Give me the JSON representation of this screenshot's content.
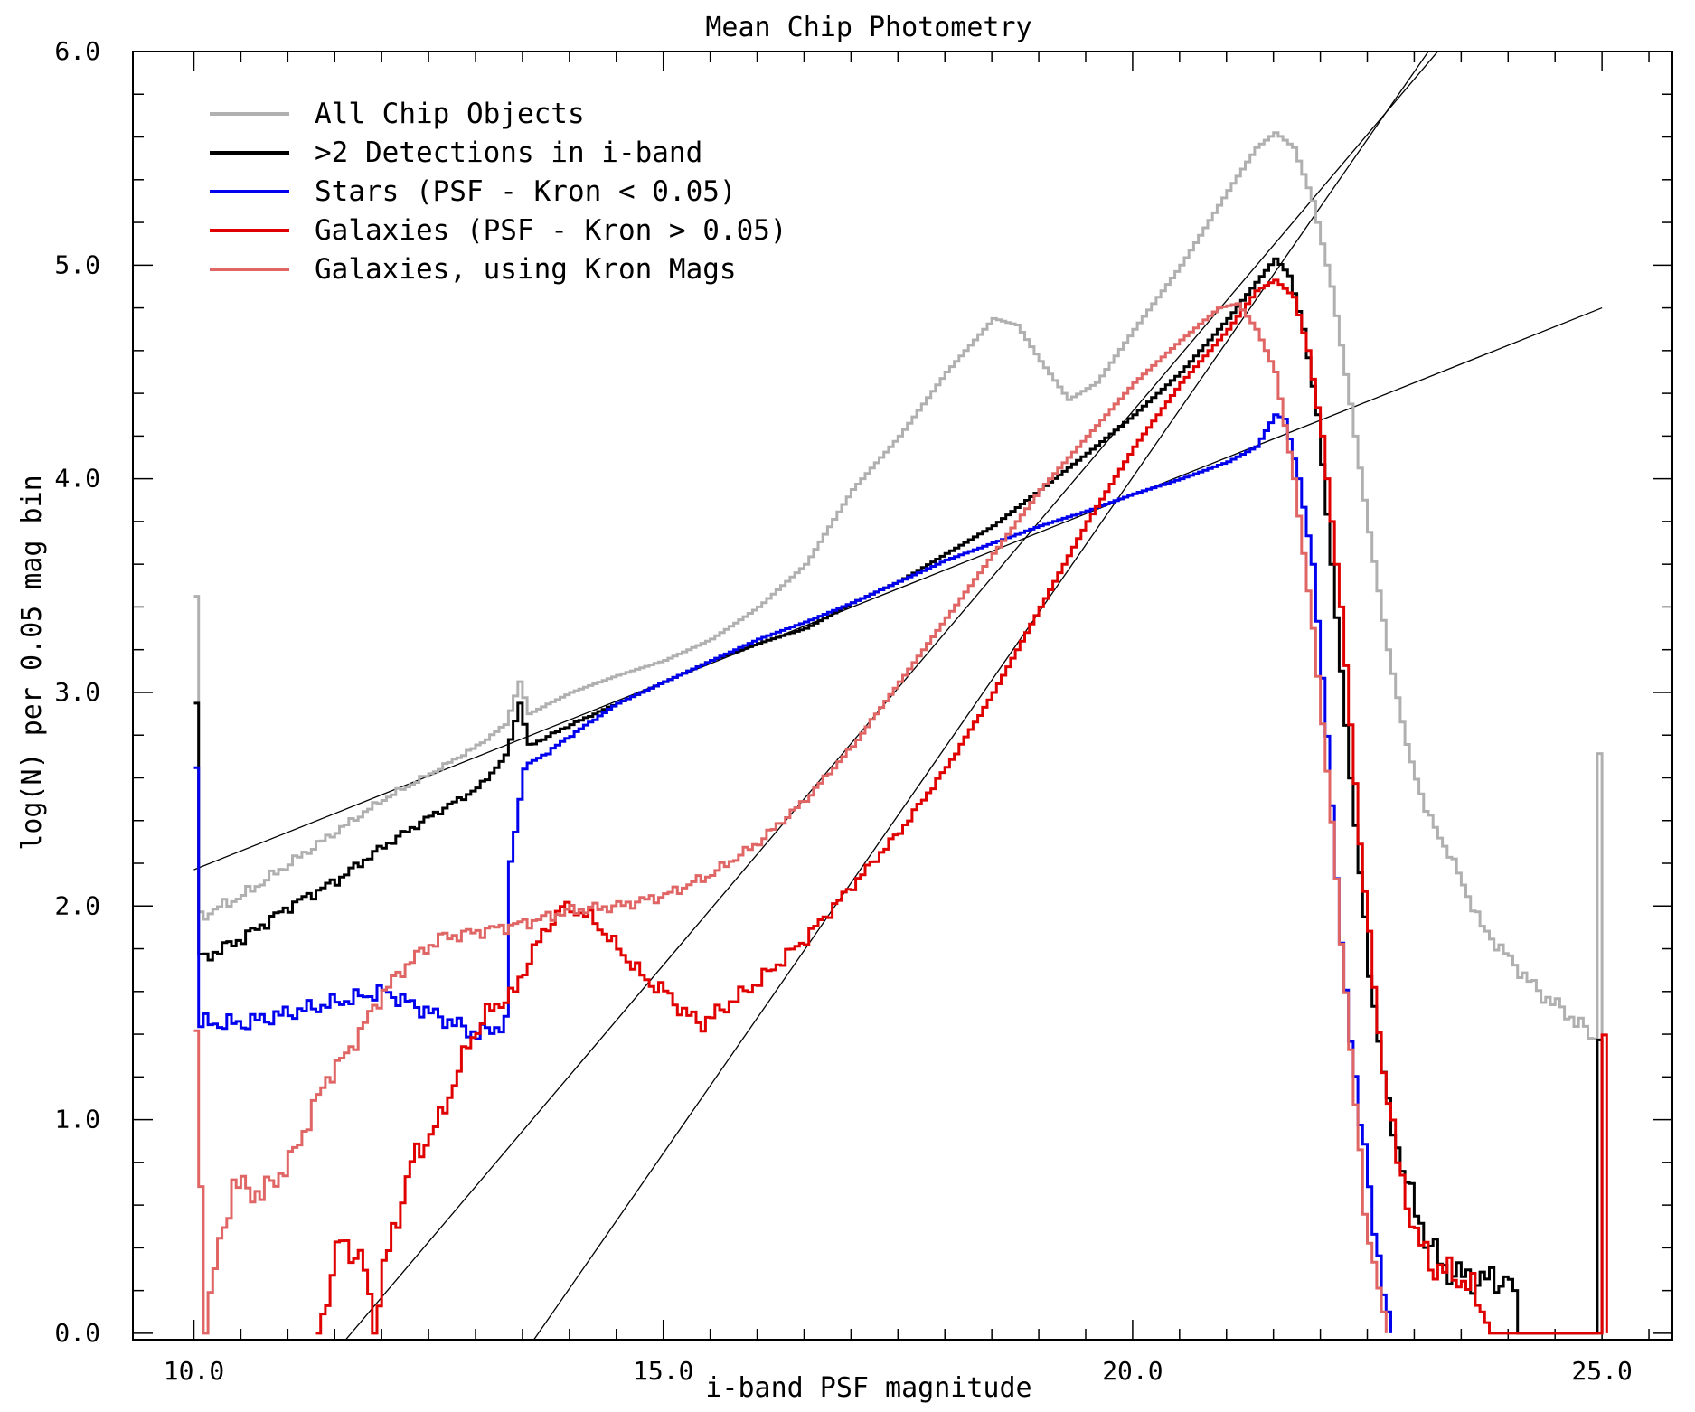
{
  "chart_data": {
    "type": "line",
    "title": "Mean Chip Photometry",
    "xlabel": "i-band PSF magnitude",
    "ylabel": "log(N) per 0.05 mag bin",
    "xlim": [
      9.35,
      25.75
    ],
    "ylim": [
      -0.03,
      6.0
    ],
    "x_ticks": [
      {
        "v": 10,
        "label": "10.0"
      },
      {
        "v": 15,
        "label": "15.0"
      },
      {
        "v": 20,
        "label": "20.0"
      },
      {
        "v": 25,
        "label": "25.0"
      }
    ],
    "y_ticks": [
      {
        "v": 0,
        "label": "0.0"
      },
      {
        "v": 1,
        "label": "1.0"
      },
      {
        "v": 2,
        "label": "2.0"
      },
      {
        "v": 3,
        "label": "3.0"
      },
      {
        "v": 4,
        "label": "4.0"
      },
      {
        "v": 5,
        "label": "5.0"
      },
      {
        "v": 6,
        "label": "6.0"
      }
    ],
    "legend": [
      {
        "label": "All Chip Objects",
        "color": "#b0b0b0"
      },
      {
        "label": ">2 Detections in i-band",
        "color": "#000000"
      },
      {
        "label": "Stars (PSF - Kron < 0.05)",
        "color": "#0000ee"
      },
      {
        "label": "Galaxies (PSF - Kron > 0.05)",
        "color": "#e00000"
      },
      {
        "label": "Galaxies, using Kron Mags",
        "color": "#e06666"
      }
    ],
    "series": [
      {
        "name": "All Chip Objects",
        "color": "#b0b0b0",
        "points": [
          [
            10.0,
            3.45
          ],
          [
            10.05,
            1.95
          ],
          [
            10.5,
            2.05
          ],
          [
            11.0,
            2.2
          ],
          [
            11.5,
            2.35
          ],
          [
            12.0,
            2.5
          ],
          [
            12.5,
            2.62
          ],
          [
            13.0,
            2.75
          ],
          [
            13.3,
            2.85
          ],
          [
            13.45,
            3.05
          ],
          [
            13.55,
            2.9
          ],
          [
            14.0,
            3.0
          ],
          [
            14.5,
            3.08
          ],
          [
            15.0,
            3.15
          ],
          [
            15.5,
            3.25
          ],
          [
            16.0,
            3.4
          ],
          [
            16.5,
            3.6
          ],
          [
            17.0,
            3.95
          ],
          [
            17.5,
            4.2
          ],
          [
            18.0,
            4.5
          ],
          [
            18.5,
            4.75
          ],
          [
            18.75,
            4.72
          ],
          [
            19.0,
            4.55
          ],
          [
            19.3,
            4.37
          ],
          [
            19.6,
            4.45
          ],
          [
            20.0,
            4.7
          ],
          [
            20.5,
            5.0
          ],
          [
            21.0,
            5.35
          ],
          [
            21.3,
            5.55
          ],
          [
            21.5,
            5.62
          ],
          [
            21.7,
            5.55
          ],
          [
            21.9,
            5.3
          ],
          [
            22.1,
            4.9
          ],
          [
            22.3,
            4.35
          ],
          [
            22.5,
            3.75
          ],
          [
            22.7,
            3.2
          ],
          [
            22.9,
            2.75
          ],
          [
            23.1,
            2.45
          ],
          [
            23.4,
            2.2
          ],
          [
            23.7,
            1.9
          ],
          [
            24.0,
            1.75
          ],
          [
            24.3,
            1.6
          ],
          [
            24.6,
            1.5
          ],
          [
            24.9,
            1.38
          ],
          [
            24.95,
            2.72
          ],
          [
            25.0,
            1.4
          ]
        ]
      },
      {
        "name": ">2 Detections in i-band",
        "color": "#000000",
        "points": [
          [
            10.0,
            2.95
          ],
          [
            10.05,
            1.75
          ],
          [
            10.5,
            1.85
          ],
          [
            11.0,
            2.0
          ],
          [
            11.5,
            2.12
          ],
          [
            12.0,
            2.28
          ],
          [
            12.5,
            2.42
          ],
          [
            13.0,
            2.55
          ],
          [
            13.3,
            2.7
          ],
          [
            13.45,
            2.95
          ],
          [
            13.55,
            2.75
          ],
          [
            14.0,
            2.85
          ],
          [
            14.5,
            2.95
          ],
          [
            15.0,
            3.05
          ],
          [
            15.5,
            3.15
          ],
          [
            16.0,
            3.23
          ],
          [
            16.5,
            3.3
          ],
          [
            17.0,
            3.42
          ],
          [
            17.5,
            3.52
          ],
          [
            18.0,
            3.65
          ],
          [
            18.5,
            3.78
          ],
          [
            19.0,
            3.95
          ],
          [
            19.5,
            4.12
          ],
          [
            20.0,
            4.3
          ],
          [
            20.5,
            4.5
          ],
          [
            21.0,
            4.75
          ],
          [
            21.3,
            4.92
          ],
          [
            21.5,
            5.03
          ],
          [
            21.65,
            4.95
          ],
          [
            21.8,
            4.7
          ],
          [
            21.95,
            4.3
          ],
          [
            22.1,
            3.6
          ],
          [
            22.3,
            2.6
          ],
          [
            22.5,
            1.7
          ],
          [
            22.7,
            1.05
          ],
          [
            22.9,
            0.7
          ],
          [
            23.1,
            0.45
          ],
          [
            23.3,
            0.3
          ],
          [
            23.6,
            0.25
          ],
          [
            24.0,
            0.25
          ],
          [
            24.1,
            0.0
          ],
          [
            24.9,
            0.0
          ],
          [
            24.95,
            1.4
          ],
          [
            25.0,
            0.0
          ]
        ]
      },
      {
        "name": "Stars (PSF - Kron < 0.05)",
        "color": "#0000ee",
        "points": [
          [
            10.0,
            2.65
          ],
          [
            10.05,
            1.45
          ],
          [
            10.5,
            1.45
          ],
          [
            11.0,
            1.5
          ],
          [
            11.5,
            1.55
          ],
          [
            12.0,
            1.6
          ],
          [
            12.5,
            1.5
          ],
          [
            13.0,
            1.4
          ],
          [
            13.3,
            1.45
          ],
          [
            13.35,
            2.2
          ],
          [
            13.5,
            2.65
          ],
          [
            13.75,
            2.72
          ],
          [
            14.0,
            2.8
          ],
          [
            14.5,
            2.95
          ],
          [
            15.0,
            3.05
          ],
          [
            15.5,
            3.15
          ],
          [
            16.0,
            3.25
          ],
          [
            16.5,
            3.33
          ],
          [
            17.0,
            3.42
          ],
          [
            17.5,
            3.52
          ],
          [
            18.0,
            3.62
          ],
          [
            18.5,
            3.7
          ],
          [
            19.0,
            3.78
          ],
          [
            19.5,
            3.85
          ],
          [
            20.0,
            3.93
          ],
          [
            20.5,
            4.0
          ],
          [
            21.0,
            4.08
          ],
          [
            21.3,
            4.15
          ],
          [
            21.5,
            4.3
          ],
          [
            21.6,
            4.28
          ],
          [
            21.75,
            4.0
          ],
          [
            21.9,
            3.6
          ],
          [
            22.05,
            2.8
          ],
          [
            22.2,
            1.8
          ],
          [
            22.4,
            1.0
          ],
          [
            22.55,
            0.5
          ],
          [
            22.7,
            0.1
          ],
          [
            22.75,
            0.0
          ]
        ]
      },
      {
        "name": "Galaxies (PSF - Kron > 0.05)",
        "color": "#e00000",
        "points": [
          [
            11.3,
            0.0
          ],
          [
            11.55,
            0.45
          ],
          [
            11.8,
            0.3
          ],
          [
            11.9,
            0.0
          ],
          [
            12.0,
            0.3
          ],
          [
            12.3,
            0.8
          ],
          [
            12.6,
            1.0
          ],
          [
            12.9,
            1.35
          ],
          [
            13.1,
            1.5
          ],
          [
            13.4,
            1.6
          ],
          [
            13.6,
            1.8
          ],
          [
            13.9,
            2.0
          ],
          [
            14.2,
            1.95
          ],
          [
            14.5,
            1.8
          ],
          [
            14.8,
            1.65
          ],
          [
            15.0,
            1.6
          ],
          [
            15.2,
            1.5
          ],
          [
            15.4,
            1.45
          ],
          [
            15.7,
            1.55
          ],
          [
            16.0,
            1.65
          ],
          [
            16.5,
            1.85
          ],
          [
            17.0,
            2.1
          ],
          [
            17.5,
            2.35
          ],
          [
            18.0,
            2.65
          ],
          [
            18.5,
            3.0
          ],
          [
            19.0,
            3.4
          ],
          [
            19.5,
            3.8
          ],
          [
            20.0,
            4.15
          ],
          [
            20.5,
            4.45
          ],
          [
            21.0,
            4.7
          ],
          [
            21.3,
            4.88
          ],
          [
            21.5,
            4.93
          ],
          [
            21.7,
            4.85
          ],
          [
            21.85,
            4.6
          ],
          [
            22.0,
            4.2
          ],
          [
            22.2,
            3.4
          ],
          [
            22.4,
            2.3
          ],
          [
            22.6,
            1.4
          ],
          [
            22.8,
            0.8
          ],
          [
            23.0,
            0.45
          ],
          [
            23.2,
            0.3
          ],
          [
            23.4,
            0.28
          ],
          [
            23.6,
            0.2
          ],
          [
            23.8,
            0.0
          ],
          [
            24.95,
            0.0
          ],
          [
            25.0,
            1.4
          ],
          [
            25.05,
            0.0
          ]
        ]
      },
      {
        "name": "Galaxies, using Kron Mags",
        "color": "#e06666",
        "points": [
          [
            10.0,
            1.4
          ],
          [
            10.1,
            0.0
          ],
          [
            10.2,
            0.3
          ],
          [
            10.4,
            0.7
          ],
          [
            10.7,
            0.65
          ],
          [
            11.0,
            0.8
          ],
          [
            11.2,
            1.0
          ],
          [
            11.4,
            1.2
          ],
          [
            11.6,
            1.3
          ],
          [
            11.8,
            1.45
          ],
          [
            12.0,
            1.6
          ],
          [
            12.3,
            1.75
          ],
          [
            12.6,
            1.85
          ],
          [
            13.0,
            1.88
          ],
          [
            13.5,
            1.92
          ],
          [
            14.0,
            1.98
          ],
          [
            14.5,
            2.0
          ],
          [
            15.0,
            2.05
          ],
          [
            15.5,
            2.15
          ],
          [
            16.0,
            2.3
          ],
          [
            16.5,
            2.5
          ],
          [
            17.0,
            2.75
          ],
          [
            17.5,
            3.05
          ],
          [
            18.0,
            3.35
          ],
          [
            18.5,
            3.65
          ],
          [
            19.0,
            3.95
          ],
          [
            19.5,
            4.2
          ],
          [
            20.0,
            4.45
          ],
          [
            20.5,
            4.65
          ],
          [
            20.9,
            4.8
          ],
          [
            21.1,
            4.82
          ],
          [
            21.3,
            4.7
          ],
          [
            21.5,
            4.5
          ],
          [
            21.7,
            4.0
          ],
          [
            21.9,
            3.3
          ],
          [
            22.1,
            2.4
          ],
          [
            22.3,
            1.3
          ],
          [
            22.5,
            0.4
          ],
          [
            22.7,
            0.0
          ]
        ]
      }
    ],
    "fit_lines": [
      {
        "x1": 10.0,
        "y1": 2.17,
        "x2": 25.0,
        "y2": 4.8
      },
      {
        "x1": 11.0,
        "y1": -0.35,
        "x2": 23.25,
        "y2": 6.0
      },
      {
        "x1": 12.8,
        "y1": -0.55,
        "x2": 23.15,
        "y2": 6.0
      }
    ]
  }
}
